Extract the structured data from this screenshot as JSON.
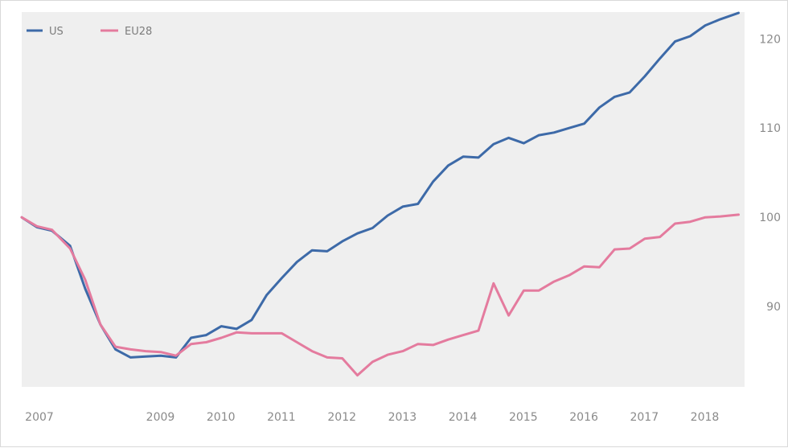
{
  "chart_data": {
    "type": "line",
    "title": "",
    "xlabel": "",
    "ylabel": "",
    "xlim": [
      2007,
      2018.95
    ],
    "ylim": [
      81,
      123
    ],
    "grid": false,
    "legend_position": "top-left",
    "xticks": [
      2007,
      2009,
      2010,
      2011,
      2012,
      2013,
      2014,
      2015,
      2016,
      2017,
      2018
    ],
    "xtick_labels": [
      "2007",
      "2009",
      "2010",
      "2011",
      "2012",
      "2013",
      "2014",
      "2015",
      "2016",
      "2017",
      "2018"
    ],
    "yticks": [
      90,
      100,
      110,
      120
    ],
    "ytick_labels": [
      "90",
      "100",
      "110",
      "120"
    ],
    "colors": {
      "US": "#3d6aa8",
      "EU28": "#e47b9e",
      "plot_background": "#efefef"
    },
    "series": [
      {
        "name": "US",
        "x": [
          2007.0,
          2007.25,
          2007.5,
          2007.8,
          2008.05,
          2008.3,
          2008.55,
          2008.8,
          2009.05,
          2009.3,
          2009.55,
          2009.8,
          2010.05,
          2010.3,
          2010.55,
          2010.8,
          2011.05,
          2011.3,
          2011.55,
          2011.8,
          2012.05,
          2012.3,
          2012.55,
          2012.8,
          2013.05,
          2013.3,
          2013.55,
          2013.8,
          2014.05,
          2014.3,
          2014.55,
          2014.8,
          2015.05,
          2015.3,
          2015.55,
          2015.8,
          2016.05,
          2016.3,
          2016.55,
          2016.8,
          2017.05,
          2017.3,
          2017.55,
          2017.8,
          2018.05,
          2018.3,
          2018.55,
          2018.85
        ],
        "values": [
          100.0,
          98.9,
          98.5,
          96.8,
          92.0,
          88.0,
          85.2,
          84.3,
          84.4,
          84.5,
          84.3,
          86.5,
          86.8,
          87.8,
          87.5,
          88.5,
          91.3,
          93.2,
          95.0,
          96.3,
          96.2,
          97.3,
          98.2,
          98.8,
          100.2,
          101.2,
          101.5,
          104.0,
          105.8,
          106.8,
          106.7,
          108.2,
          108.9,
          108.3,
          109.2,
          109.5,
          110.0,
          110.5,
          112.3,
          113.5,
          114.0,
          115.8,
          117.8,
          119.7,
          120.3,
          121.5,
          122.2,
          122.9
        ]
      },
      {
        "name": "EU28",
        "x": [
          2007.0,
          2007.25,
          2007.5,
          2007.8,
          2008.05,
          2008.3,
          2008.55,
          2008.8,
          2009.05,
          2009.3,
          2009.55,
          2009.8,
          2010.05,
          2010.3,
          2010.55,
          2010.8,
          2011.05,
          2011.3,
          2011.55,
          2011.8,
          2012.05,
          2012.3,
          2012.55,
          2012.8,
          2013.05,
          2013.3,
          2013.55,
          2013.8,
          2014.05,
          2014.3,
          2014.55,
          2014.8,
          2015.05,
          2015.3,
          2015.55,
          2015.8,
          2016.05,
          2016.3,
          2016.55,
          2016.8,
          2017.05,
          2017.3,
          2017.55,
          2017.8,
          2018.05,
          2018.3,
          2018.55,
          2018.85
        ],
        "values": [
          100.0,
          99.0,
          98.6,
          96.5,
          93.0,
          88.0,
          85.5,
          85.2,
          85.0,
          84.9,
          84.5,
          85.8,
          86.0,
          86.5,
          87.1,
          87.0,
          87.0,
          87.0,
          86.0,
          85.0,
          84.3,
          84.2,
          82.3,
          83.8,
          84.6,
          85.0,
          85.8,
          85.7,
          86.3,
          86.8,
          87.3,
          92.6,
          89.0,
          91.8,
          91.8,
          92.8,
          93.5,
          94.5,
          94.4,
          96.4,
          96.5,
          97.6,
          97.8,
          99.3,
          99.5,
          100.0,
          100.1,
          100.3
        ]
      }
    ]
  }
}
